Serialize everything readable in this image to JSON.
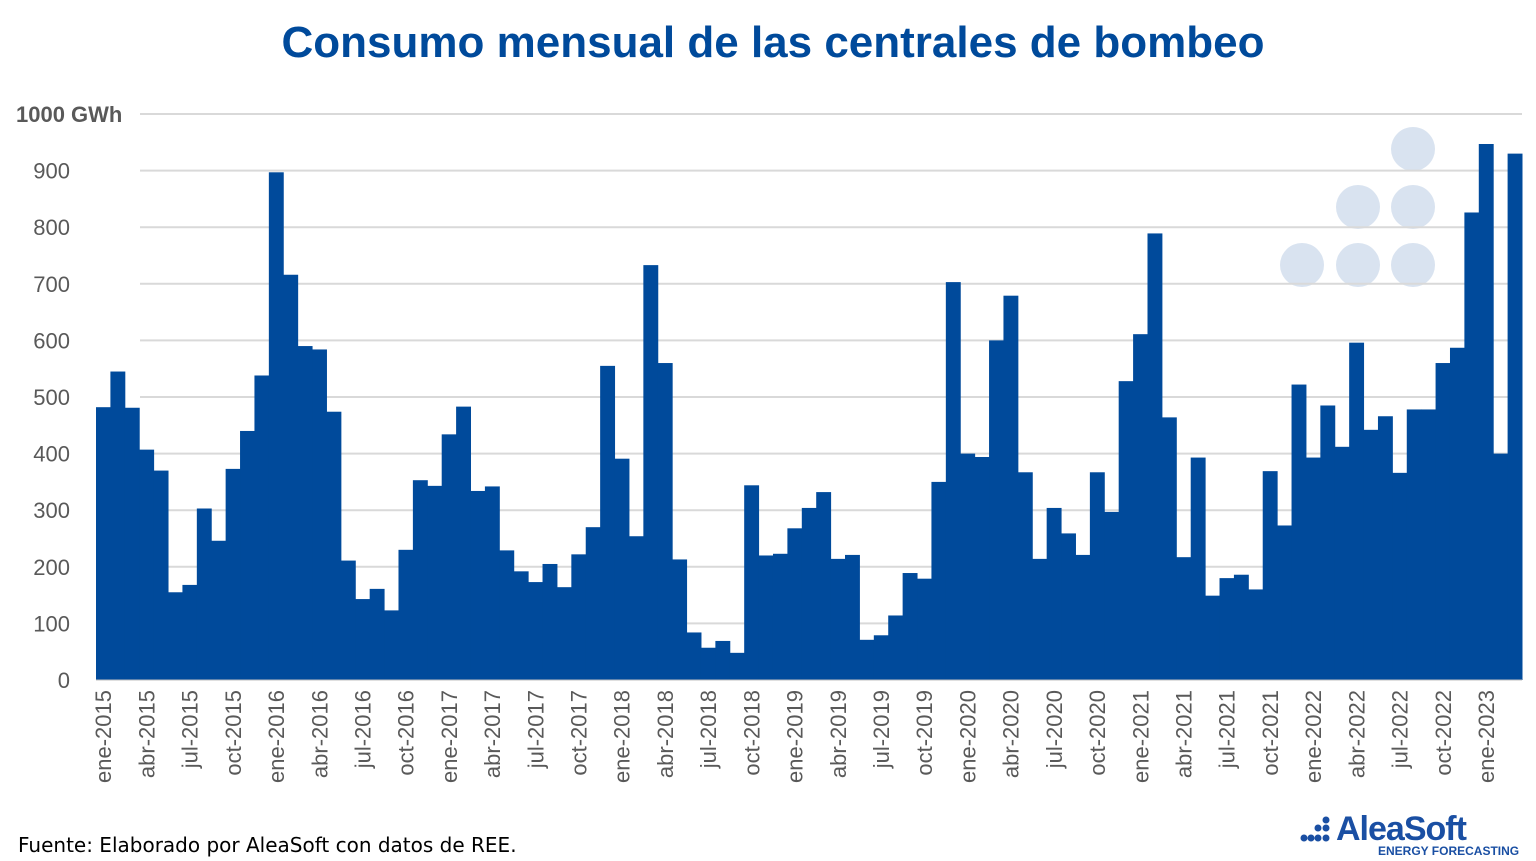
{
  "title": "Consumo mensual de las centrales de bombeo",
  "source": "Fuente: Elaborado por AleaSoft con datos de REE.",
  "logo": {
    "name": "AleaSoft",
    "tagline": "ENERGY FORECASTING"
  },
  "colors": {
    "bar": "#004a9b",
    "title": "#004a9b",
    "grid": "#d9d9d9",
    "watermark": "#d9e3f0"
  },
  "chart_data": {
    "type": "bar",
    "title": "Consumo mensual de las centrales de bombeo",
    "ylabel": "",
    "y_unit_label": "1000 GWh",
    "ylim": [
      0,
      1000
    ],
    "yticks": [
      "0",
      "100",
      "200",
      "300",
      "400",
      "500",
      "600",
      "700",
      "800",
      "900"
    ],
    "grid": true,
    "start_month": "ene-2015",
    "xtick_labels": [
      "ene-2015",
      "abr-2015",
      "jul-2015",
      "oct-2015",
      "ene-2016",
      "abr-2016",
      "jul-2016",
      "oct-2016",
      "ene-2017",
      "abr-2017",
      "jul-2017",
      "oct-2017",
      "ene-2018",
      "abr-2018",
      "jul-2018",
      "oct-2018",
      "ene-2019",
      "abr-2019",
      "jul-2019",
      "oct-2019",
      "ene-2020",
      "abr-2020",
      "jul-2020",
      "oct-2020",
      "ene-2021",
      "abr-2021",
      "jul-2021",
      "oct-2021",
      "ene-2022",
      "abr-2022",
      "jul-2022",
      "oct-2022",
      "ene-2023"
    ],
    "values": [
      482,
      545,
      481,
      407,
      370,
      155,
      168,
      303,
      246,
      373,
      440,
      538,
      897,
      716,
      590,
      584,
      474,
      211,
      143,
      161,
      123,
      230,
      353,
      343,
      434,
      483,
      334,
      342,
      229,
      192,
      173,
      205,
      164,
      222,
      270,
      555,
      391,
      254,
      733,
      560,
      213,
      84,
      57,
      69,
      48,
      344,
      220,
      223,
      268,
      304,
      332,
      214,
      221,
      71,
      79,
      114,
      189,
      179,
      350,
      703,
      400,
      394,
      600,
      679,
      367,
      214,
      304,
      259,
      221,
      367,
      297,
      528,
      611,
      789,
      464,
      217,
      393,
      149,
      180,
      186,
      160,
      369,
      273,
      522,
      393,
      485,
      412,
      596,
      442,
      466,
      366,
      478,
      478,
      560,
      587,
      826,
      947,
      400,
      930
    ]
  }
}
